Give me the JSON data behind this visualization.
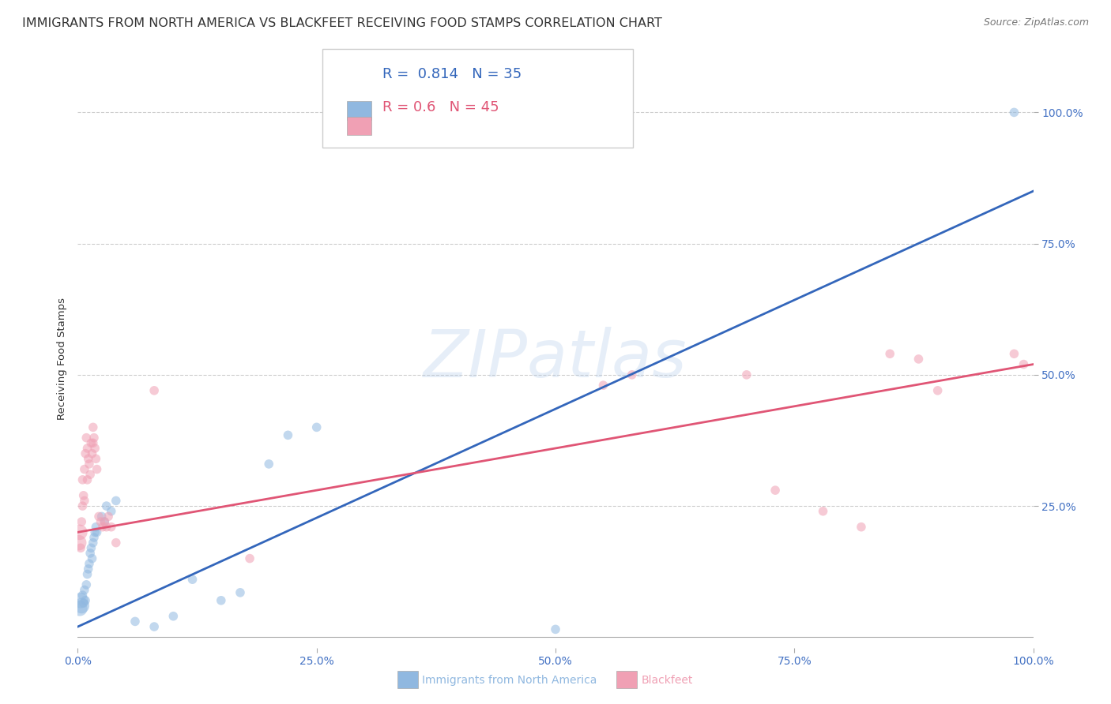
{
  "title": "IMMIGRANTS FROM NORTH AMERICA VS BLACKFEET RECEIVING FOOD STAMPS CORRELATION CHART",
  "source": "Source: ZipAtlas.com",
  "xlabel_label": "Immigrants from North America",
  "ylabel_label_bottom": "Blackfeet",
  "ylabel_label": "Receiving Food Stamps",
  "xlim": [
    0,
    1
  ],
  "ylim": [
    -0.02,
    1.08
  ],
  "ytick_vals": [
    0.25,
    0.5,
    0.75,
    1.0
  ],
  "ytick_labels": [
    "25.0%",
    "50.0%",
    "75.0%",
    "100.0%"
  ],
  "xtick_vals": [
    0.0,
    0.25,
    0.5,
    0.75,
    1.0
  ],
  "xtick_labels": [
    "0.0%",
    "25.0%",
    "50.0%",
    "75.0%",
    "100.0%"
  ],
  "watermark": "ZIPatlas",
  "blue_color": "#90b8e0",
  "pink_color": "#f0a0b4",
  "blue_line_color": "#3366bb",
  "pink_line_color": "#e05575",
  "blue_R": 0.814,
  "blue_N": 35,
  "pink_R": 0.6,
  "pink_N": 45,
  "blue_scatter": [
    [
      0.002,
      0.055
    ],
    [
      0.003,
      0.07
    ],
    [
      0.004,
      0.06
    ],
    [
      0.005,
      0.08
    ],
    [
      0.006,
      0.065
    ],
    [
      0.007,
      0.09
    ],
    [
      0.008,
      0.07
    ],
    [
      0.009,
      0.1
    ],
    [
      0.01,
      0.12
    ],
    [
      0.011,
      0.13
    ],
    [
      0.012,
      0.14
    ],
    [
      0.013,
      0.16
    ],
    [
      0.014,
      0.17
    ],
    [
      0.015,
      0.15
    ],
    [
      0.016,
      0.18
    ],
    [
      0.017,
      0.19
    ],
    [
      0.018,
      0.2
    ],
    [
      0.019,
      0.21
    ],
    [
      0.02,
      0.2
    ],
    [
      0.025,
      0.23
    ],
    [
      0.028,
      0.22
    ],
    [
      0.03,
      0.25
    ],
    [
      0.035,
      0.24
    ],
    [
      0.04,
      0.26
    ],
    [
      0.06,
      0.03
    ],
    [
      0.08,
      0.02
    ],
    [
      0.1,
      0.04
    ],
    [
      0.12,
      0.11
    ],
    [
      0.15,
      0.07
    ],
    [
      0.17,
      0.085
    ],
    [
      0.2,
      0.33
    ],
    [
      0.22,
      0.385
    ],
    [
      0.25,
      0.4
    ],
    [
      0.5,
      0.015
    ],
    [
      0.98,
      1.0
    ]
  ],
  "pink_scatter": [
    [
      0.001,
      0.18
    ],
    [
      0.002,
      0.2
    ],
    [
      0.003,
      0.17
    ],
    [
      0.004,
      0.22
    ],
    [
      0.005,
      0.25
    ],
    [
      0.005,
      0.3
    ],
    [
      0.006,
      0.27
    ],
    [
      0.007,
      0.26
    ],
    [
      0.007,
      0.32
    ],
    [
      0.008,
      0.35
    ],
    [
      0.009,
      0.38
    ],
    [
      0.01,
      0.36
    ],
    [
      0.01,
      0.3
    ],
    [
      0.011,
      0.34
    ],
    [
      0.012,
      0.33
    ],
    [
      0.013,
      0.31
    ],
    [
      0.014,
      0.37
    ],
    [
      0.015,
      0.35
    ],
    [
      0.016,
      0.4
    ],
    [
      0.016,
      0.37
    ],
    [
      0.017,
      0.38
    ],
    [
      0.018,
      0.36
    ],
    [
      0.019,
      0.34
    ],
    [
      0.02,
      0.32
    ],
    [
      0.022,
      0.23
    ],
    [
      0.024,
      0.22
    ],
    [
      0.026,
      0.21
    ],
    [
      0.028,
      0.22
    ],
    [
      0.03,
      0.21
    ],
    [
      0.032,
      0.23
    ],
    [
      0.035,
      0.21
    ],
    [
      0.04,
      0.18
    ],
    [
      0.08,
      0.47
    ],
    [
      0.18,
      0.15
    ],
    [
      0.55,
      0.48
    ],
    [
      0.58,
      0.5
    ],
    [
      0.7,
      0.5
    ],
    [
      0.73,
      0.28
    ],
    [
      0.78,
      0.24
    ],
    [
      0.82,
      0.21
    ],
    [
      0.85,
      0.54
    ],
    [
      0.88,
      0.53
    ],
    [
      0.9,
      0.47
    ],
    [
      0.98,
      0.54
    ],
    [
      0.99,
      0.52
    ]
  ],
  "blue_line_x0": 0.0,
  "blue_line_x1": 1.0,
  "blue_line_y0": 0.02,
  "blue_line_y1": 0.85,
  "pink_line_x0": 0.0,
  "pink_line_x1": 1.0,
  "pink_line_y0": 0.2,
  "pink_line_y1": 0.52,
  "marker_size_default": 70,
  "marker_size_large": 200,
  "background_color": "#ffffff",
  "grid_color": "#cccccc",
  "tick_color": "#4472c4",
  "title_color": "#333333",
  "title_fontsize": 11.5,
  "label_fontsize": 9.5,
  "tick_fontsize": 10,
  "legend_R_color": "#3366bb",
  "legend_N_color": "#3366bb"
}
